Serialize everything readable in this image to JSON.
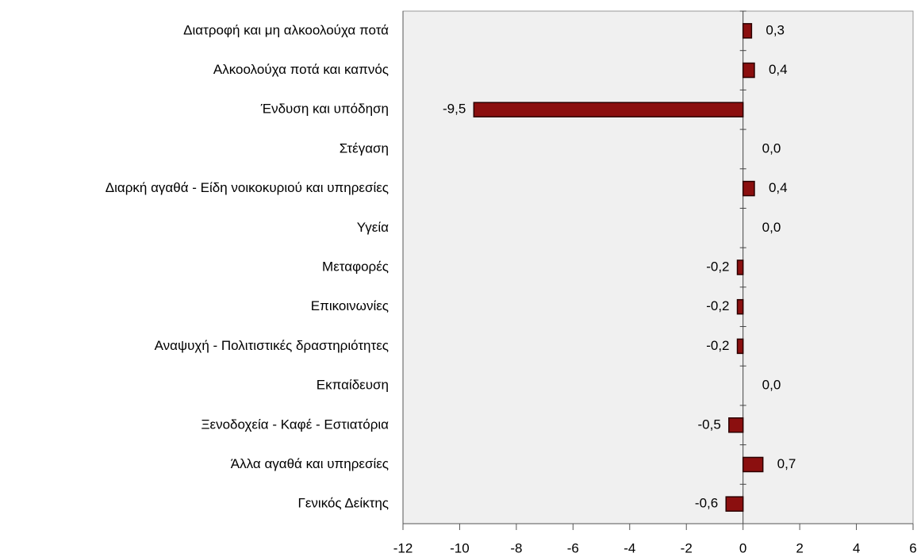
{
  "chart_data": {
    "type": "bar",
    "orientation": "horizontal",
    "categories": [
      "Διατροφή και μη αλκοολούχα ποτά",
      "Αλκοολούχα ποτά και καπνός",
      "Ένδυση και υπόδηση",
      "Στέγαση",
      "Διαρκή αγαθά - Είδη νοικοκυριού και υπηρεσίες",
      "Υγεία",
      "Μεταφορές",
      "Επικοινωνίες",
      "Αναψυχή - Πολιτιστικές δραστηριότητες",
      "Εκπαίδευση",
      "Ξενοδοχεία - Καφέ - Εστιατόρια",
      "Άλλα αγαθά και υπηρεσίες",
      "Γενικός Δείκτης"
    ],
    "values": [
      0.3,
      0.4,
      -9.5,
      0.0,
      0.4,
      0.0,
      -0.2,
      -0.2,
      -0.2,
      0.0,
      -0.5,
      0.7,
      -0.6
    ],
    "value_labels": [
      "0,3",
      "0,4",
      "-9,5",
      "0,0",
      "0,4",
      "0,0",
      "-0,2",
      "-0,2",
      "-0,2",
      "0,0",
      "-0,5",
      "0,7",
      "-0,6"
    ],
    "color": "#8b0f0f",
    "xlim": [
      -12,
      6
    ],
    "xticks": [
      -12,
      -10,
      -8,
      -6,
      -4,
      -2,
      0,
      2,
      4,
      6
    ]
  }
}
